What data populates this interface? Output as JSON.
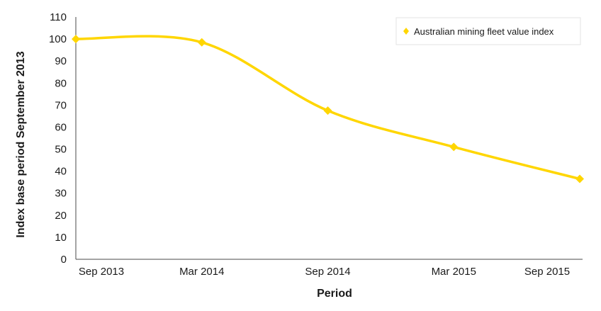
{
  "chart_data": {
    "type": "line",
    "title": "",
    "xlabel": "Period",
    "ylabel": "Index base period September 2013",
    "categories": [
      "Sep 2013",
      "Mar 2014",
      "Sep 2014",
      "Mar 2015",
      "Sep 2015"
    ],
    "series": [
      {
        "name": "Australian mining fleet value index",
        "values": [
          100,
          98.5,
          67.5,
          51,
          36.5
        ],
        "color": "#ffd600",
        "marker": "diamond",
        "smooth": true
      }
    ],
    "yticks": [
      "0",
      "10",
      "20",
      "30",
      "40",
      "50",
      "60",
      "70",
      "80",
      "90",
      "100",
      "110"
    ],
    "ylim": [
      0,
      110
    ],
    "grid": false,
    "legend_position": "top-right"
  }
}
